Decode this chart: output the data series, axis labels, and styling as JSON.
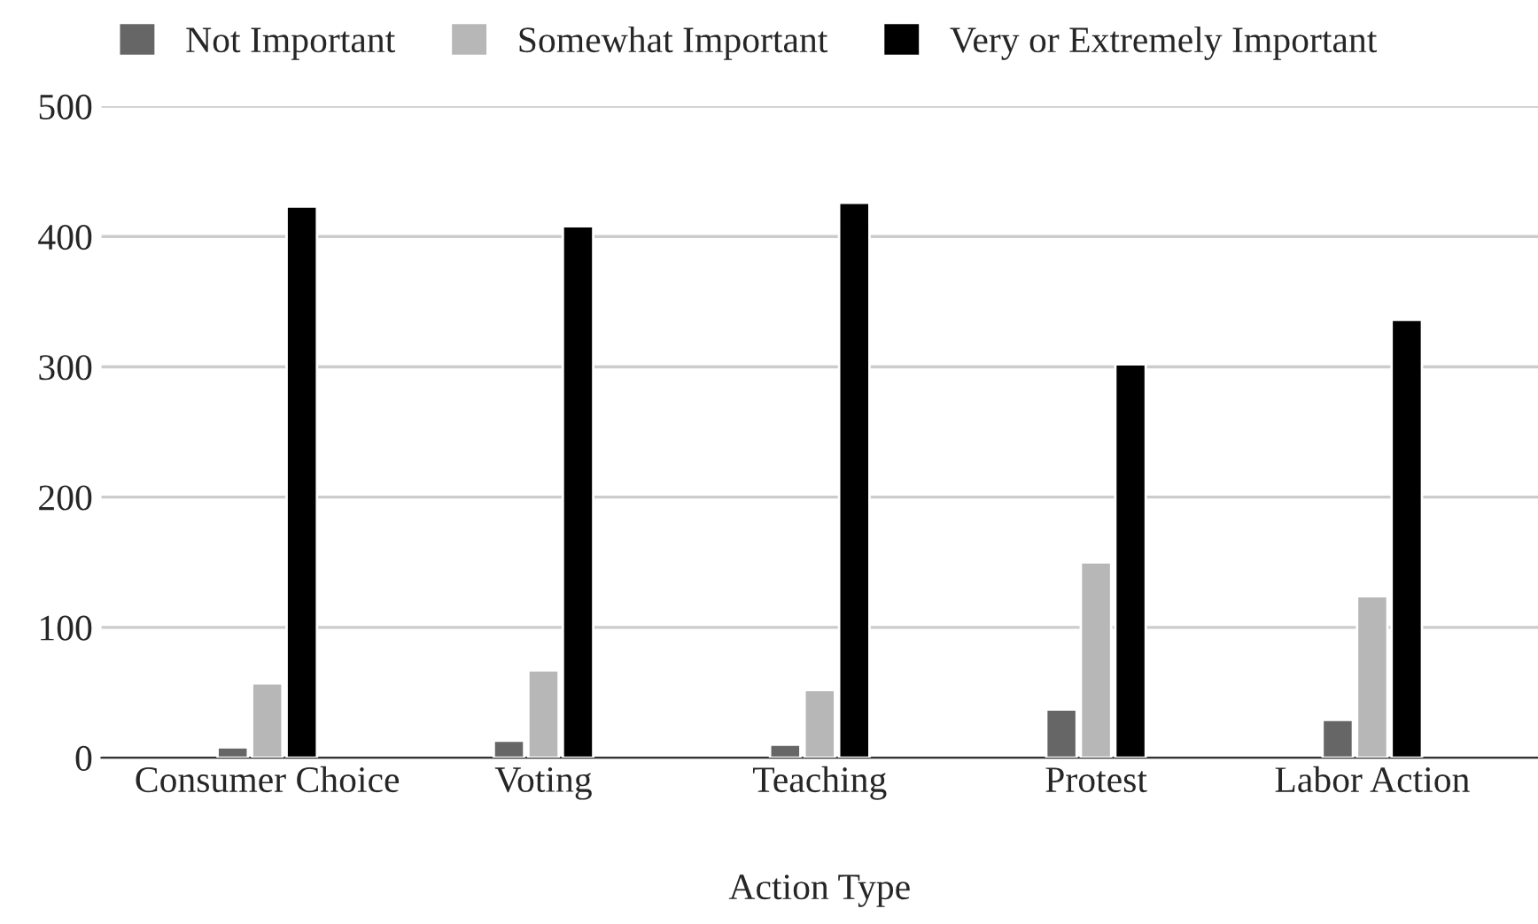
{
  "chart_data": {
    "type": "bar",
    "xlabel": "Action Type",
    "categories": [
      "Consumer Choice",
      "Voting",
      "Teaching",
      "Protest",
      "Labor Action"
    ],
    "series": [
      {
        "name": "Not Important",
        "color": "#666666",
        "values": [
          8,
          13,
          10,
          37,
          29
        ]
      },
      {
        "name": "Somewhat Important",
        "color": "#b7b7b7",
        "values": [
          57,
          67,
          52,
          150,
          124
        ]
      },
      {
        "name": "Very or Extremely Important",
        "color": "#000000",
        "values": [
          423,
          408,
          426,
          302,
          336
        ]
      }
    ],
    "ylim": [
      0,
      500
    ],
    "yticks": [
      0,
      100,
      200,
      300,
      400,
      500
    ],
    "grid": "y",
    "legend": "top"
  }
}
